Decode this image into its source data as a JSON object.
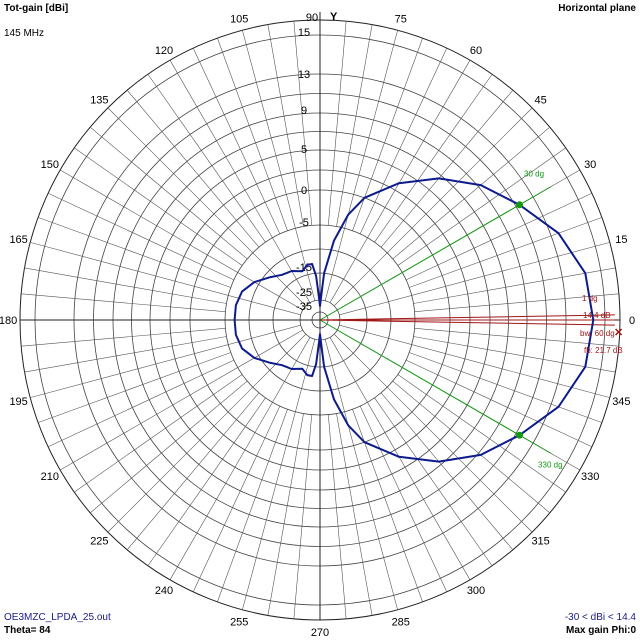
{
  "chart_data": {
    "type": "polar",
    "title": "Tot-gain [dBi]",
    "plane": "Horizontal plane",
    "frequency": "145 MHz",
    "file": "OE3MZC_LPDA_25.out",
    "theta": "Theta= 84",
    "range_text": "-30 < dBi < 14.4",
    "max_gain_text": "Max gain Phi:0",
    "y_axis_label": "Y",
    "angle_labels": [
      0,
      15,
      30,
      45,
      60,
      75,
      90,
      105,
      120,
      135,
      150,
      165,
      180,
      195,
      210,
      225,
      240,
      255,
      270,
      285,
      300,
      315,
      330,
      345
    ],
    "radial_ticks": [
      "15",
      "13",
      "9",
      "5",
      "0",
      "-5",
      "-15",
      "-25",
      "-35"
    ],
    "grid": true,
    "pattern": {
      "unit": "dBi",
      "points": [
        {
          "phi": 0,
          "gain": 14.4
        },
        {
          "phi": 10,
          "gain": 14.2
        },
        {
          "phi": 20,
          "gain": 13.4
        },
        {
          "phi": 30,
          "gain": 11.4
        },
        {
          "phi": 40,
          "gain": 9.3
        },
        {
          "phi": 50,
          "gain": 6.6
        },
        {
          "phi": 60,
          "gain": 3.5
        },
        {
          "phi": 70,
          "gain": 0
        },
        {
          "phi": 75,
          "gain": -3
        },
        {
          "phi": 80,
          "gain": -8
        },
        {
          "phi": 85,
          "gain": -15
        },
        {
          "phi": 88,
          "gain": -25
        },
        {
          "phi": 90,
          "gain": -30
        },
        {
          "phi": 92,
          "gain": -25
        },
        {
          "phi": 95,
          "gain": -16
        },
        {
          "phi": 98,
          "gain": -13
        },
        {
          "phi": 103,
          "gain": -13
        },
        {
          "phi": 110,
          "gain": -14
        },
        {
          "phi": 120,
          "gain": -13
        },
        {
          "phi": 130,
          "gain": -12.5
        },
        {
          "phi": 140,
          "gain": -11
        },
        {
          "phi": 150,
          "gain": -9
        },
        {
          "phi": 160,
          "gain": -7.5
        },
        {
          "phi": 170,
          "gain": -7
        },
        {
          "phi": 180,
          "gain": -7
        },
        {
          "phi": 190,
          "gain": -7
        },
        {
          "phi": 200,
          "gain": -7.5
        },
        {
          "phi": 210,
          "gain": -9
        },
        {
          "phi": 220,
          "gain": -11
        },
        {
          "phi": 230,
          "gain": -12.5
        },
        {
          "phi": 240,
          "gain": -13
        },
        {
          "phi": 250,
          "gain": -14
        },
        {
          "phi": 257,
          "gain": -13
        },
        {
          "phi": 262,
          "gain": -13
        },
        {
          "phi": 265,
          "gain": -16
        },
        {
          "phi": 268,
          "gain": -25
        },
        {
          "phi": 270,
          "gain": -30
        },
        {
          "phi": 272,
          "gain": -25
        },
        {
          "phi": 275,
          "gain": -15
        },
        {
          "phi": 280,
          "gain": -8
        },
        {
          "phi": 285,
          "gain": -3
        },
        {
          "phi": 290,
          "gain": 0
        },
        {
          "phi": 300,
          "gain": 3.5
        },
        {
          "phi": 310,
          "gain": 6.6
        },
        {
          "phi": 320,
          "gain": 9.3
        },
        {
          "phi": 330,
          "gain": 11.4
        },
        {
          "phi": 340,
          "gain": 13.4
        },
        {
          "phi": 350,
          "gain": 14.2
        },
        {
          "phi": 360,
          "gain": 14.4
        }
      ],
      "color": "#0d1b8c"
    },
    "markers": {
      "beam_lines": [
        {
          "phi": 30,
          "label": "30 dg"
        },
        {
          "phi": 330,
          "label": "330 dg"
        }
      ],
      "beam_color": "#129912",
      "dots": [
        {
          "phi": 30,
          "gain": 11.4
        },
        {
          "phi": 330,
          "gain": 11.4
        }
      ],
      "red_lines": [
        {
          "phi": 1,
          "label": "1 dg"
        },
        {
          "phi": 0,
          "label": "14.4 dB"
        },
        {
          "phi": -1
        }
      ],
      "red_color": "#a01818",
      "annotations": [
        {
          "text": "bw: 60 dg"
        },
        {
          "text": "fb: 21.7 dB"
        }
      ]
    }
  }
}
